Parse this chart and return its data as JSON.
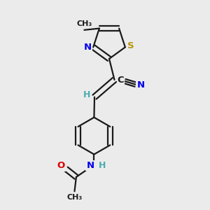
{
  "bg_color": "#ebebeb",
  "bond_color": "#1a1a1a",
  "bond_width": 1.6,
  "dbo": 0.012,
  "atom_colors": {
    "N": "#0000ee",
    "S": "#b8960c",
    "O": "#dd0000",
    "C": "#1a1a1a",
    "H": "#4aadad"
  },
  "fs": 9.5
}
